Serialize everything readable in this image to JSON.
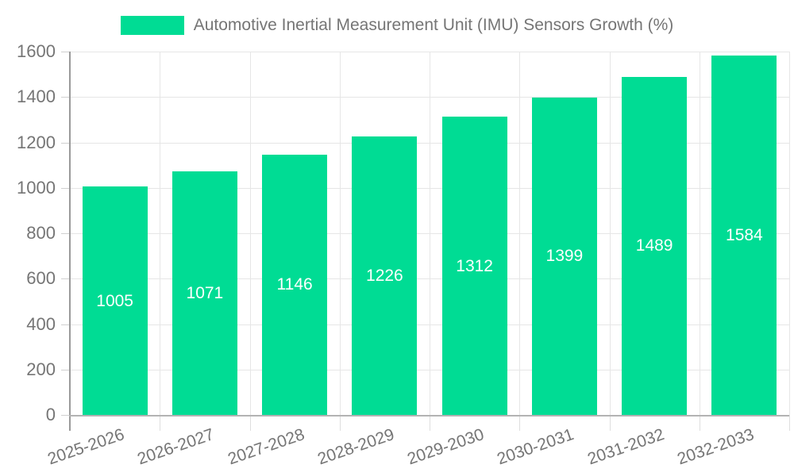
{
  "chart_data": {
    "type": "bar",
    "legend": "Automotive Inertial Measurement Unit (IMU) Sensors Growth (%)",
    "categories": [
      "2025-2026",
      "2026-2027",
      "2027-2028",
      "2028-2029",
      "2029-2030",
      "2030-2031",
      "2031-2032",
      "2032-2033"
    ],
    "values": [
      1005,
      1071,
      1146,
      1226,
      1312,
      1399,
      1489,
      1584
    ],
    "value_labels": [
      "1005",
      "1071",
      "1146",
      "1226",
      "1312",
      "1399",
      "1489",
      "1584"
    ],
    "ytick_labels": [
      "0",
      "200",
      "400",
      "600",
      "800",
      "1000",
      "1200",
      "1400",
      "1600"
    ],
    "yticks": [
      0,
      200,
      400,
      600,
      800,
      1000,
      1200,
      1400,
      1600
    ],
    "ylim": [
      0,
      1600
    ],
    "grid": true,
    "legend_position": "top",
    "xlabel": "",
    "ylabel": "",
    "colors": {
      "bar": "#00DC94",
      "value_label": "#ffffff",
      "axis_text": "#757575"
    }
  }
}
